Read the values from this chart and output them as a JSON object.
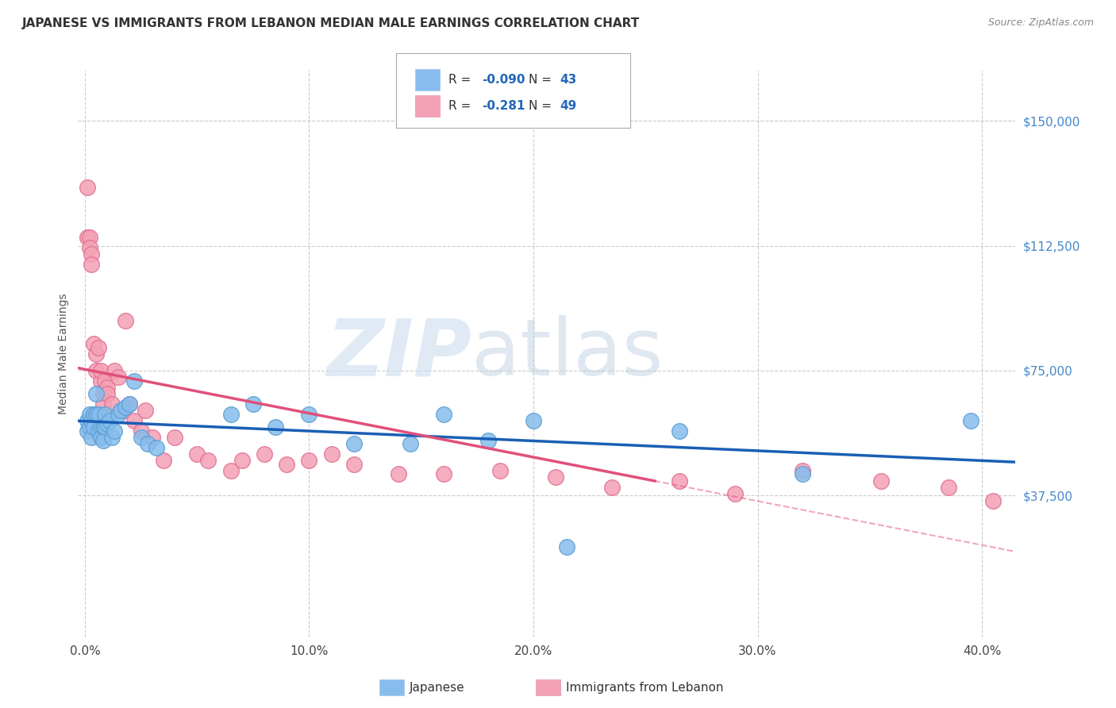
{
  "title": "JAPANESE VS IMMIGRANTS FROM LEBANON MEDIAN MALE EARNINGS CORRELATION CHART",
  "source": "Source: ZipAtlas.com",
  "ylabel": "Median Male Earnings",
  "xlabel_ticks": [
    "0.0%",
    "10.0%",
    "20.0%",
    "30.0%",
    "40.0%"
  ],
  "xlabel_tick_vals": [
    0.0,
    0.1,
    0.2,
    0.3,
    0.4
  ],
  "ytick_labels": [
    "$37,500",
    "$75,000",
    "$112,500",
    "$150,000"
  ],
  "ytick_vals": [
    37500,
    75000,
    112500,
    150000
  ],
  "ylim": [
    -5000,
    165000
  ],
  "xlim": [
    -0.003,
    0.415
  ],
  "japanese_color": "#87BCEC",
  "japanese_edge_color": "#5a9fd4",
  "lebanon_color": "#F4A0B5",
  "lebanon_edge_color": "#e07090",
  "japanese_trend_color": "#1a5fb4",
  "lebanon_trend_color": "#e0507a",
  "japanese_R": -0.09,
  "japanese_N": 43,
  "lebanon_R": -0.281,
  "lebanon_N": 49,
  "japanese_scatter_x": [
    0.001,
    0.001,
    0.002,
    0.002,
    0.003,
    0.003,
    0.004,
    0.004,
    0.005,
    0.005,
    0.006,
    0.006,
    0.007,
    0.007,
    0.008,
    0.008,
    0.009,
    0.009,
    0.01,
    0.011,
    0.012,
    0.013,
    0.015,
    0.016,
    0.018,
    0.02,
    0.022,
    0.025,
    0.028,
    0.032,
    0.065,
    0.075,
    0.085,
    0.1,
    0.12,
    0.145,
    0.16,
    0.18,
    0.2,
    0.215,
    0.265,
    0.32,
    0.395
  ],
  "japanese_scatter_y": [
    60000,
    57000,
    62000,
    58000,
    60000,
    55000,
    62000,
    58000,
    68000,
    62000,
    62000,
    57000,
    58000,
    55000,
    58000,
    54000,
    62000,
    58000,
    59000,
    60000,
    55000,
    57000,
    62000,
    63000,
    64000,
    65000,
    72000,
    55000,
    53000,
    52000,
    62000,
    65000,
    58000,
    62000,
    53000,
    53000,
    62000,
    54000,
    60000,
    22000,
    57000,
    44000,
    60000
  ],
  "lebanon_scatter_x": [
    0.001,
    0.001,
    0.002,
    0.002,
    0.003,
    0.003,
    0.004,
    0.005,
    0.005,
    0.006,
    0.007,
    0.007,
    0.008,
    0.008,
    0.009,
    0.01,
    0.01,
    0.012,
    0.013,
    0.015,
    0.017,
    0.018,
    0.02,
    0.022,
    0.025,
    0.027,
    0.03,
    0.035,
    0.04,
    0.05,
    0.055,
    0.065,
    0.07,
    0.08,
    0.09,
    0.1,
    0.11,
    0.12,
    0.14,
    0.16,
    0.185,
    0.21,
    0.235,
    0.265,
    0.29,
    0.32,
    0.355,
    0.385,
    0.405
  ],
  "lebanon_scatter_y": [
    130000,
    115000,
    115000,
    112000,
    110000,
    107000,
    83000,
    80000,
    75000,
    82000,
    72000,
    75000,
    68000,
    65000,
    72000,
    70000,
    68000,
    65000,
    75000,
    73000,
    63000,
    90000,
    65000,
    60000,
    57000,
    63000,
    55000,
    48000,
    55000,
    50000,
    48000,
    45000,
    48000,
    50000,
    47000,
    48000,
    50000,
    47000,
    44000,
    44000,
    45000,
    43000,
    40000,
    42000,
    38000,
    45000,
    42000,
    40000,
    36000
  ],
  "background_color": "#ffffff",
  "grid_color": "#cccccc",
  "watermark_zip_color": "#ccddf0",
  "watermark_atlas_color": "#b8cce0"
}
